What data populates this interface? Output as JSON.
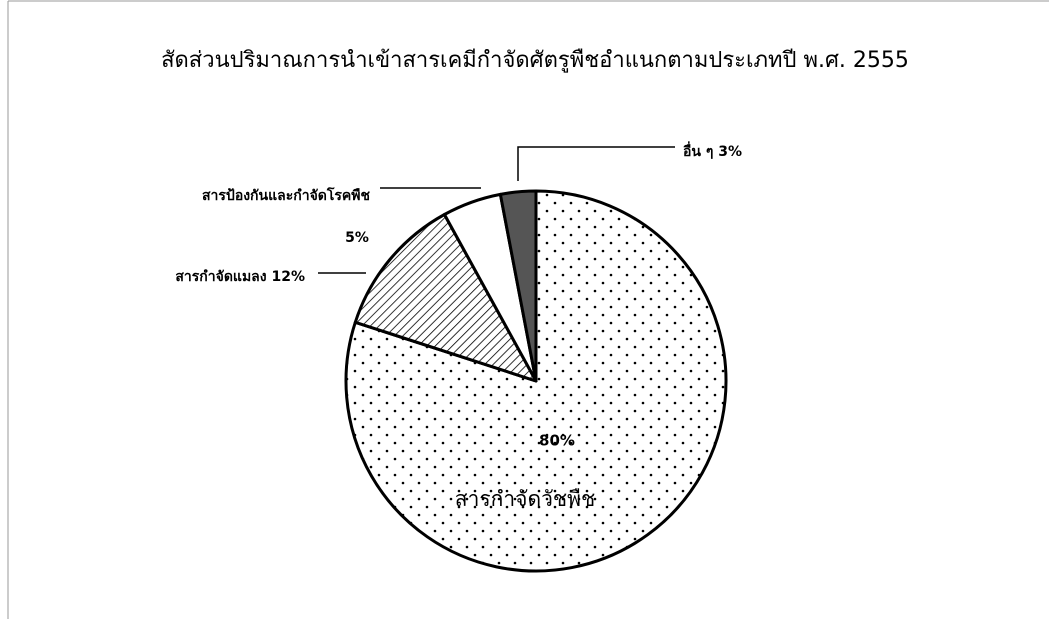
{
  "chart_data": {
    "type": "pie",
    "title": "สัดส่วนปริมาณการนำเข้าสารเคมีกำจัดศัตรูพืชอำแนกตามประเภทปี พ.ศ. 2555",
    "categories": [
      "สารกำจัดวัชพืช",
      "สารกำจัดแมลง",
      "สารป้องกันและกำจัดโรคพืช",
      "อื่น ๆ"
    ],
    "values": [
      80,
      12,
      5,
      3
    ],
    "value_labels": [
      "80%",
      "12%",
      "5%",
      "3%"
    ],
    "colors": [
      "#ffffff",
      "#ffffff",
      "#ffffff",
      "#555555"
    ],
    "patterns": [
      "dots",
      "hatch",
      "none",
      "none"
    ]
  }
}
